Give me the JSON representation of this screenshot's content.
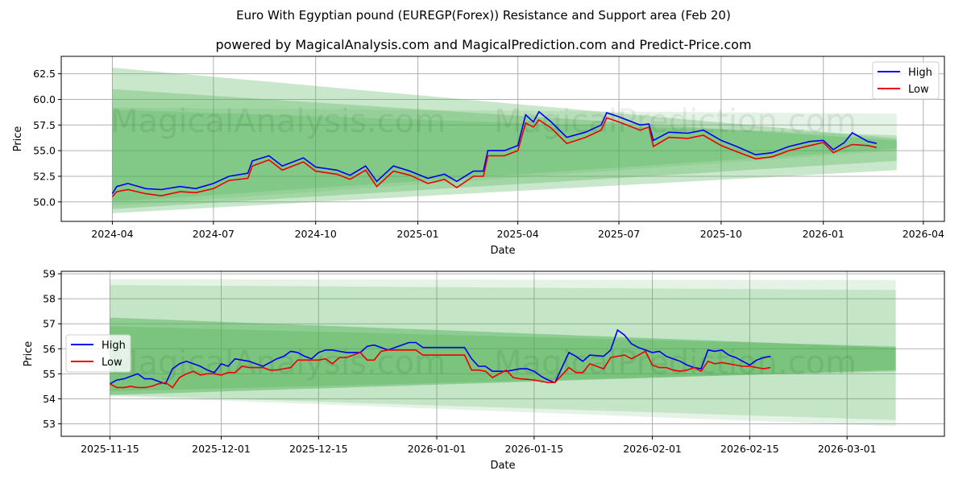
{
  "title": "Euro With Egyptian pound (EUREGP(Forex)) Resistance and Support area (Feb 20)",
  "subtitle": "powered by MagicalAnalysis.com and MagicalPrediction.com and Predict-Price.com",
  "watermarks": [
    "MagicalAnalysis.com",
    "MagicalPrediction.com"
  ],
  "colors": {
    "high": "#0000ee",
    "low": "#ee0000",
    "band": "#4caf50",
    "grid": "#b0b0b0"
  },
  "chart_data": [
    {
      "type": "line",
      "xlabel": "Date",
      "ylabel": "Price",
      "xlim": [
        "2024-02-15",
        "2026-04-20"
      ],
      "ylim": [
        48.1,
        64.2
      ],
      "xticks": [
        "2024-04-01",
        "2024-07-01",
        "2024-10-01",
        "2025-01-01",
        "2025-04-01",
        "2025-07-01",
        "2025-10-01",
        "2026-01-01",
        "2026-04-01"
      ],
      "xtick_labels": [
        "2024-04",
        "2024-07",
        "2024-10",
        "2025-01",
        "2025-04",
        "2025-07",
        "2025-10",
        "2026-01",
        "2026-04"
      ],
      "yticks": [
        50,
        52.5,
        55,
        57.5,
        60,
        62.5
      ],
      "ytick_labels": [
        "50.0",
        "52.5",
        "55.0",
        "57.5",
        "60.0",
        "62.5"
      ],
      "legend": {
        "position": "top-right",
        "entries": [
          "High",
          "Low"
        ]
      },
      "grid": true,
      "bands": [
        {
          "start": "2024-04-01",
          "end": "2026-03-08",
          "from": [
            48.9,
            63.1
          ],
          "to": [
            53.1,
            56.2
          ],
          "opacity": 0.3
        },
        {
          "start": "2024-04-01",
          "end": "2026-03-08",
          "from": [
            49.3,
            61.0
          ],
          "to": [
            54.0,
            56.0
          ],
          "opacity": 0.3
        },
        {
          "start": "2024-04-01",
          "end": "2026-03-08",
          "from": [
            49.6,
            59.2
          ],
          "to": [
            55.0,
            58.6
          ],
          "opacity": 0.15
        },
        {
          "start": "2024-04-01",
          "end": "2026-03-08",
          "from": [
            50.0,
            59.0
          ],
          "to": [
            55.2,
            56.5
          ],
          "opacity": 0.25
        }
      ],
      "series": [
        {
          "name": "High",
          "x": [
            "2024-04-01",
            "2024-04-05",
            "2024-04-15",
            "2024-05-01",
            "2024-05-15",
            "2024-06-01",
            "2024-06-15",
            "2024-07-01",
            "2024-07-15",
            "2024-08-01",
            "2024-08-05",
            "2024-08-20",
            "2024-09-01",
            "2024-09-20",
            "2024-10-01",
            "2024-10-20",
            "2024-11-01",
            "2024-11-15",
            "2024-11-25",
            "2024-12-10",
            "2024-12-25",
            "2025-01-10",
            "2025-01-25",
            "2025-02-05",
            "2025-02-20",
            "2025-03-01",
            "2025-03-05",
            "2025-03-20",
            "2025-04-01",
            "2025-04-08",
            "2025-04-15",
            "2025-04-20",
            "2025-05-01",
            "2025-05-15",
            "2025-06-01",
            "2025-06-15",
            "2025-06-20",
            "2025-07-01",
            "2025-07-20",
            "2025-07-28",
            "2025-08-01",
            "2025-08-15",
            "2025-09-01",
            "2025-09-15",
            "2025-10-01",
            "2025-10-15",
            "2025-11-01",
            "2025-11-16",
            "2025-12-01",
            "2025-12-20",
            "2026-01-01",
            "2026-01-10",
            "2026-01-20",
            "2026-01-27",
            "2026-02-10",
            "2026-02-18"
          ],
          "y": [
            50.8,
            51.5,
            51.8,
            51.3,
            51.2,
            51.5,
            51.3,
            51.8,
            52.5,
            52.8,
            54.0,
            54.5,
            53.5,
            54.3,
            53.4,
            53.1,
            52.6,
            53.5,
            52.0,
            53.5,
            53.0,
            52.3,
            52.7,
            52.0,
            53.0,
            53.0,
            55.0,
            55.0,
            55.5,
            58.5,
            57.8,
            58.8,
            57.8,
            56.3,
            56.8,
            57.5,
            58.7,
            58.3,
            57.5,
            57.6,
            56.0,
            56.8,
            56.7,
            57.0,
            56.0,
            55.4,
            54.6,
            54.8,
            55.4,
            55.9,
            56.0,
            55.1,
            55.8,
            56.75,
            55.9,
            55.7
          ]
        },
        {
          "name": "Low",
          "x": [
            "2024-04-01",
            "2024-04-05",
            "2024-04-15",
            "2024-05-01",
            "2024-05-15",
            "2024-06-01",
            "2024-06-15",
            "2024-07-01",
            "2024-07-15",
            "2024-08-01",
            "2024-08-05",
            "2024-08-20",
            "2024-09-01",
            "2024-09-20",
            "2024-10-01",
            "2024-10-20",
            "2024-11-01",
            "2024-11-15",
            "2024-11-25",
            "2024-12-10",
            "2024-12-25",
            "2025-01-10",
            "2025-01-25",
            "2025-02-05",
            "2025-02-20",
            "2025-03-01",
            "2025-03-05",
            "2025-03-20",
            "2025-04-01",
            "2025-04-08",
            "2025-04-15",
            "2025-04-20",
            "2025-05-01",
            "2025-05-15",
            "2025-06-01",
            "2025-06-15",
            "2025-06-20",
            "2025-07-01",
            "2025-07-20",
            "2025-07-28",
            "2025-08-01",
            "2025-08-15",
            "2025-09-01",
            "2025-09-15",
            "2025-10-01",
            "2025-10-15",
            "2025-11-01",
            "2025-11-16",
            "2025-12-01",
            "2025-12-20",
            "2026-01-01",
            "2026-01-10",
            "2026-01-20",
            "2026-01-27",
            "2026-02-10",
            "2026-02-18"
          ],
          "y": [
            50.5,
            51.0,
            51.2,
            50.8,
            50.6,
            51.0,
            50.9,
            51.3,
            52.1,
            52.3,
            53.5,
            54.1,
            53.1,
            53.9,
            53.0,
            52.7,
            52.2,
            53.1,
            51.5,
            53.0,
            52.6,
            51.8,
            52.2,
            51.4,
            52.5,
            52.5,
            54.5,
            54.5,
            55.0,
            57.7,
            57.3,
            58.0,
            57.2,
            55.7,
            56.3,
            57.0,
            58.2,
            57.8,
            57.0,
            57.3,
            55.4,
            56.3,
            56.2,
            56.5,
            55.5,
            54.9,
            54.2,
            54.4,
            55.0,
            55.5,
            55.8,
            54.8,
            55.3,
            55.6,
            55.5,
            55.3
          ]
        }
      ]
    },
    {
      "type": "line",
      "xlabel": "Date",
      "ylabel": "Price",
      "xlim": [
        "2025-11-08",
        "2026-03-15"
      ],
      "ylim": [
        52.5,
        59.1
      ],
      "xticks": [
        "2025-11-15",
        "2025-12-01",
        "2025-12-15",
        "2026-01-01",
        "2026-01-15",
        "2026-02-01",
        "2026-02-15",
        "2026-03-01"
      ],
      "xtick_labels": [
        "2025-11-15",
        "2025-12-01",
        "2025-12-15",
        "2026-01-01",
        "2026-01-15",
        "2026-02-01",
        "2026-02-15",
        "2026-03-01"
      ],
      "yticks": [
        53,
        54,
        55,
        56,
        57,
        58,
        59
      ],
      "ytick_labels": [
        "53",
        "54",
        "55",
        "56",
        "57",
        "58",
        "59"
      ],
      "legend": {
        "position": "center-left",
        "entries": [
          "High",
          "Low"
        ]
      },
      "grid": true,
      "bands": [
        {
          "start": "2025-11-15",
          "end": "2026-03-08",
          "from": [
            54.1,
            58.78
          ],
          "to": [
            52.9,
            58.75
          ],
          "opacity": 0.15
        },
        {
          "start": "2025-11-15",
          "end": "2026-03-08",
          "from": [
            54.15,
            58.55
          ],
          "to": [
            53.15,
            58.35
          ],
          "opacity": 0.2
        },
        {
          "start": "2025-11-15",
          "end": "2026-03-08",
          "from": [
            54.15,
            57.25
          ],
          "to": [
            55.15,
            56.05
          ],
          "opacity": 0.45
        },
        {
          "start": "2025-11-15",
          "end": "2026-03-08",
          "from": [
            54.3,
            56.9
          ],
          "to": [
            55.1,
            56.1
          ],
          "opacity": 0.3
        }
      ],
      "series": [
        {
          "name": "High",
          "x": [
            "2025-11-15",
            "2025-11-16",
            "2025-11-17",
            "2025-11-18",
            "2025-11-19",
            "2025-11-20",
            "2025-11-21",
            "2025-11-22",
            "2025-11-23",
            "2025-11-24",
            "2025-11-25",
            "2025-11-26",
            "2025-11-27",
            "2025-11-28",
            "2025-11-29",
            "2025-11-30",
            "2025-12-01",
            "2025-12-02",
            "2025-12-03",
            "2025-12-04",
            "2025-12-05",
            "2025-12-07",
            "2025-12-08",
            "2025-12-09",
            "2025-12-10",
            "2025-12-11",
            "2025-12-12",
            "2025-12-13",
            "2025-12-14",
            "2025-12-15",
            "2025-12-16",
            "2025-12-17",
            "2025-12-18",
            "2025-12-19",
            "2025-12-21",
            "2025-12-22",
            "2025-12-23",
            "2025-12-24",
            "2025-12-25",
            "2025-12-28",
            "2025-12-29",
            "2025-12-30",
            "2026-01-05",
            "2026-01-06",
            "2026-01-07",
            "2026-01-08",
            "2026-01-09",
            "2026-01-11",
            "2026-01-12",
            "2026-01-13",
            "2026-01-14",
            "2026-01-15",
            "2026-01-16",
            "2026-01-17",
            "2026-01-18",
            "2026-01-20",
            "2026-01-21",
            "2026-01-22",
            "2026-01-23",
            "2026-01-25",
            "2026-01-26",
            "2026-01-27",
            "2026-01-28",
            "2026-01-29",
            "2026-01-30",
            "2026-01-31",
            "2026-02-01",
            "2026-02-02",
            "2026-02-03",
            "2026-02-04",
            "2026-02-05",
            "2026-02-06",
            "2026-02-07",
            "2026-02-08",
            "2026-02-09",
            "2026-02-10",
            "2026-02-11",
            "2026-02-12",
            "2026-02-13",
            "2026-02-14",
            "2026-02-15",
            "2026-02-16",
            "2026-02-17",
            "2026-02-18"
          ],
          "y": [
            54.6,
            54.75,
            54.8,
            54.9,
            55.0,
            54.8,
            54.8,
            54.7,
            54.6,
            55.2,
            55.4,
            55.5,
            55.4,
            55.3,
            55.15,
            55.05,
            55.4,
            55.3,
            55.6,
            55.55,
            55.5,
            55.3,
            55.45,
            55.6,
            55.7,
            55.9,
            55.85,
            55.7,
            55.6,
            55.85,
            55.95,
            55.95,
            55.9,
            55.85,
            55.85,
            56.1,
            56.15,
            56.05,
            55.95,
            56.25,
            56.25,
            56.05,
            56.05,
            55.6,
            55.3,
            55.3,
            55.1,
            55.1,
            55.15,
            55.2,
            55.2,
            55.1,
            54.9,
            54.75,
            54.65,
            55.85,
            55.7,
            55.5,
            55.75,
            55.7,
            55.95,
            56.75,
            56.55,
            56.2,
            56.05,
            55.95,
            55.85,
            55.9,
            55.7,
            55.6,
            55.5,
            55.35,
            55.25,
            55.2,
            55.95,
            55.9,
            55.95,
            55.75,
            55.65,
            55.5,
            55.35,
            55.55,
            55.65,
            55.7
          ]
        },
        {
          "name": "Low",
          "x": [
            "2025-11-15",
            "2025-11-16",
            "2025-11-17",
            "2025-11-18",
            "2025-11-19",
            "2025-11-20",
            "2025-11-21",
            "2025-11-22",
            "2025-11-23",
            "2025-11-24",
            "2025-11-25",
            "2025-11-26",
            "2025-11-27",
            "2025-11-28",
            "2025-11-29",
            "2025-11-30",
            "2025-12-01",
            "2025-12-02",
            "2025-12-03",
            "2025-12-04",
            "2025-12-05",
            "2025-12-07",
            "2025-12-08",
            "2025-12-09",
            "2025-12-10",
            "2025-12-11",
            "2025-12-12",
            "2025-12-13",
            "2025-12-14",
            "2025-12-15",
            "2025-12-16",
            "2025-12-17",
            "2025-12-18",
            "2025-12-19",
            "2025-12-21",
            "2025-12-22",
            "2025-12-23",
            "2025-12-24",
            "2025-12-25",
            "2025-12-28",
            "2025-12-29",
            "2025-12-30",
            "2026-01-05",
            "2026-01-06",
            "2026-01-07",
            "2026-01-08",
            "2026-01-09",
            "2026-01-11",
            "2026-01-12",
            "2026-01-13",
            "2026-01-14",
            "2026-01-15",
            "2026-01-16",
            "2026-01-17",
            "2026-01-18",
            "2026-01-20",
            "2026-01-21",
            "2026-01-22",
            "2026-01-23",
            "2026-01-25",
            "2026-01-26",
            "2026-01-27",
            "2026-01-28",
            "2026-01-29",
            "2026-01-30",
            "2026-01-31",
            "2026-02-01",
            "2026-02-02",
            "2026-02-03",
            "2026-02-04",
            "2026-02-05",
            "2026-02-06",
            "2026-02-07",
            "2026-02-08",
            "2026-02-09",
            "2026-02-10",
            "2026-02-11",
            "2026-02-12",
            "2026-02-13",
            "2026-02-14",
            "2026-02-15",
            "2026-02-16",
            "2026-02-17",
            "2026-02-18"
          ],
          "y": [
            54.6,
            54.45,
            54.45,
            54.5,
            54.45,
            54.45,
            54.5,
            54.6,
            54.65,
            54.45,
            54.85,
            55.0,
            55.1,
            54.95,
            55.0,
            55.0,
            54.95,
            55.05,
            55.05,
            55.3,
            55.25,
            55.25,
            55.15,
            55.15,
            55.2,
            55.25,
            55.55,
            55.55,
            55.55,
            55.55,
            55.6,
            55.4,
            55.65,
            55.65,
            55.85,
            55.55,
            55.55,
            55.9,
            55.95,
            55.95,
            55.95,
            55.75,
            55.75,
            55.15,
            55.15,
            55.1,
            54.85,
            55.15,
            54.85,
            54.8,
            54.78,
            54.75,
            54.7,
            54.65,
            54.65,
            55.25,
            55.05,
            55.05,
            55.4,
            55.2,
            55.65,
            55.7,
            55.75,
            55.6,
            55.75,
            55.9,
            55.35,
            55.25,
            55.25,
            55.15,
            55.1,
            55.15,
            55.25,
            55.1,
            55.5,
            55.4,
            55.45,
            55.4,
            55.35,
            55.3,
            55.3,
            55.25,
            55.2,
            55.25
          ]
        }
      ]
    }
  ]
}
